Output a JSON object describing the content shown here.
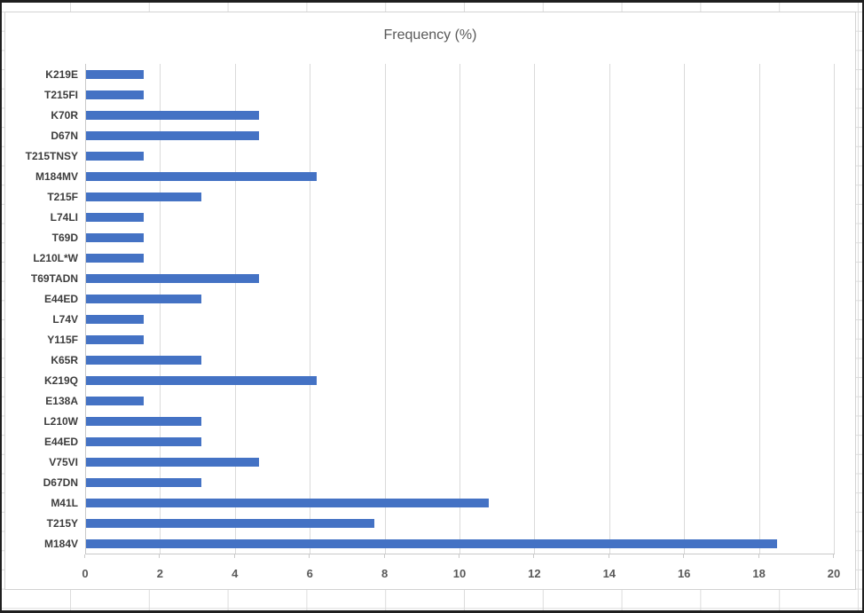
{
  "chart_data": {
    "type": "bar",
    "orientation": "horizontal",
    "title": "Frequency (%)",
    "categories": [
      "K219E",
      "T215FI",
      "K70R",
      "D67N",
      "T215TNSY",
      "M184MV",
      "T215F",
      "L74LI",
      "T69D",
      "L210L*W",
      "T69TADN",
      "E44ED",
      "L74V",
      "Y115F",
      "K65R",
      "K219Q",
      "E138A",
      "L210W",
      "E44ED",
      "V75VI",
      "D67DN",
      "M41L",
      "T215Y",
      "M184V"
    ],
    "values": [
      1.54,
      1.54,
      4.62,
      4.62,
      1.54,
      6.15,
      3.08,
      1.54,
      1.54,
      1.54,
      4.62,
      3.08,
      1.54,
      1.54,
      3.08,
      6.15,
      1.54,
      3.08,
      3.08,
      4.62,
      3.08,
      10.77,
      7.69,
      18.46
    ],
    "xlabel": "",
    "ylabel": "",
    "xlim": [
      0,
      20
    ],
    "x_ticks": [
      0,
      2,
      4,
      6,
      8,
      10,
      12,
      14,
      16,
      18,
      20
    ],
    "grid": true,
    "legend_position": "none",
    "bar_color": "#4472C4",
    "title_color": "#595959",
    "axis_tick_color": "#595959",
    "category_label_color": "#3d3d3d",
    "gridline_color": "#dadada"
  }
}
